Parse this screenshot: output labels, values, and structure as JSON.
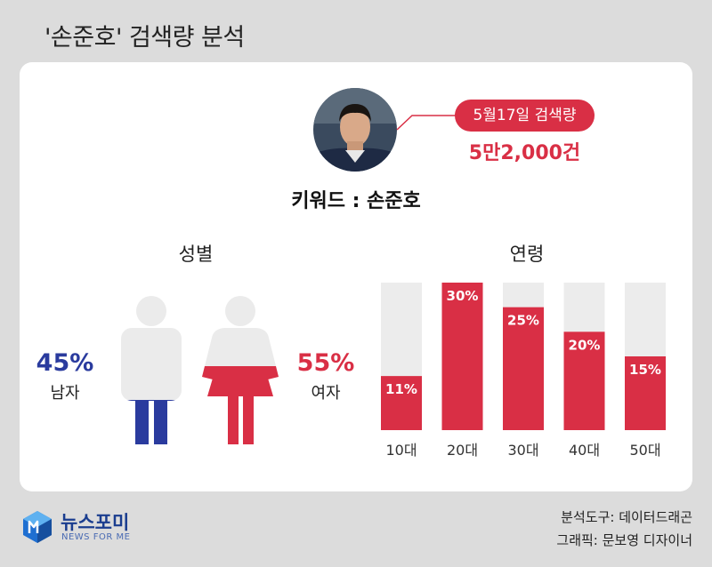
{
  "title": "'손준호' 검색량 분석",
  "search_date_label": "5월17일 검색량",
  "search_count": "5만2,000건",
  "keyword_label": "키워드 : 손준호",
  "gender": {
    "title": "성별",
    "male": {
      "pct": "45%",
      "label": "남자",
      "value": 45,
      "color": "#2a3b9e"
    },
    "female": {
      "pct": "55%",
      "label": "여자",
      "value": 55,
      "color": "#d92f45"
    }
  },
  "chart_data": {
    "type": "bar",
    "title": "연령",
    "categories": [
      "10대",
      "20대",
      "30대",
      "40대",
      "50대"
    ],
    "values": [
      11,
      30,
      25,
      20,
      15
    ],
    "value_labels": [
      "11%",
      "30%",
      "25%",
      "20%",
      "15%"
    ],
    "ylim": [
      0,
      30
    ],
    "bar_color": "#d92f45",
    "track_color": "#ececec"
  },
  "footer": {
    "brand": "뉴스포미",
    "brand_sub": "NEWS FOR ME",
    "credit_tool": "분석도구: 데이터드래곤",
    "credit_graphic": "그래픽: 문보영 디자이너"
  }
}
